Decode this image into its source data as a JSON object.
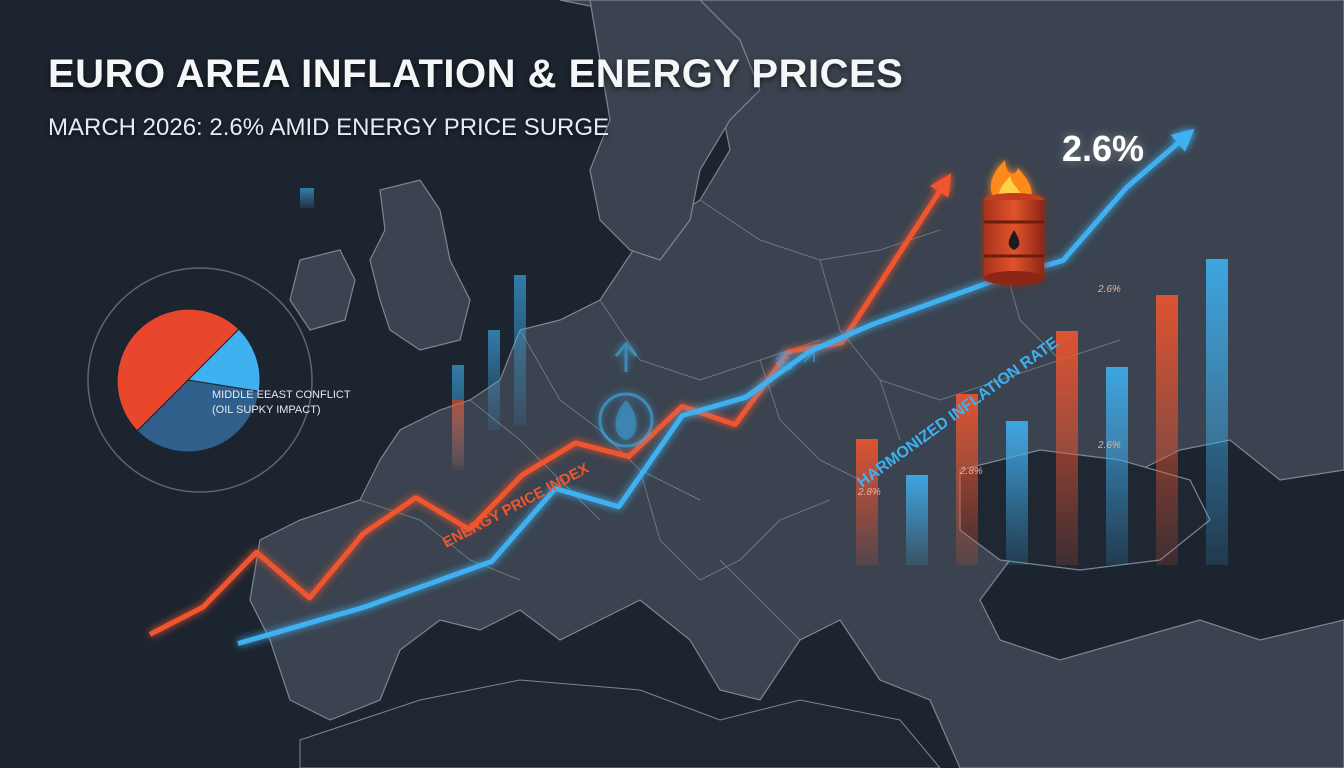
{
  "header": {
    "title": "EURO AREA INFLATION & ENERGY PRICES",
    "subtitle": "MARCH 2026: 2.6% AMID ENERGY PRICE SURGE"
  },
  "callout": {
    "value": "2.6%"
  },
  "colors": {
    "background": "#1c2430",
    "land": "#3a434f",
    "borders": "#7c8793",
    "energy": "#f0552e",
    "inflation": "#3fb0f0",
    "pie_red": "#e8462d",
    "pie_navy": "#2f5f8a",
    "pie_light": "#3fb0f0"
  },
  "icons": [
    "europe-map",
    "oil-barrel-icon",
    "fire-icon",
    "euro-icon",
    "gas-flame-icon"
  ],
  "chart_data": [
    {
      "type": "line",
      "series": [
        {
          "name": "ENERGY PRICE INDEX",
          "color": "#f0552e",
          "values": [
            10,
            16,
            28,
            18,
            32,
            40,
            33,
            45,
            52,
            49,
            60,
            56,
            72,
            74,
            92,
            110
          ]
        },
        {
          "name": "HARMONIZED INFLATION RATE",
          "color": "#3fb0f0",
          "values": [
            8,
            12,
            16,
            21,
            26,
            42,
            38,
            58,
            62,
            72,
            78,
            83,
            88,
            92,
            108,
            120
          ]
        }
      ],
      "grid": false,
      "legend": "inline labels along lines"
    },
    {
      "type": "bar",
      "series": [
        {
          "color": "#f0552e",
          "values": [
            14,
            19,
            26,
            30
          ]
        },
        {
          "color": "#3fb0f0",
          "values": [
            10,
            16,
            22,
            34
          ]
        }
      ],
      "data_labels": [
        "2.8%",
        "2.6%",
        "2.6%",
        "2.8%"
      ]
    },
    {
      "type": "pie",
      "slices": [
        {
          "value": 35,
          "color": "#2f5f8a"
        },
        {
          "value": 50,
          "color": "#e8462d"
        },
        {
          "value": 15,
          "color": "#3fb0f0"
        }
      ],
      "annotation": [
        "MIDDLE EEAST CONFLICT",
        "(OIL SUPKY IMPACT)"
      ]
    }
  ]
}
